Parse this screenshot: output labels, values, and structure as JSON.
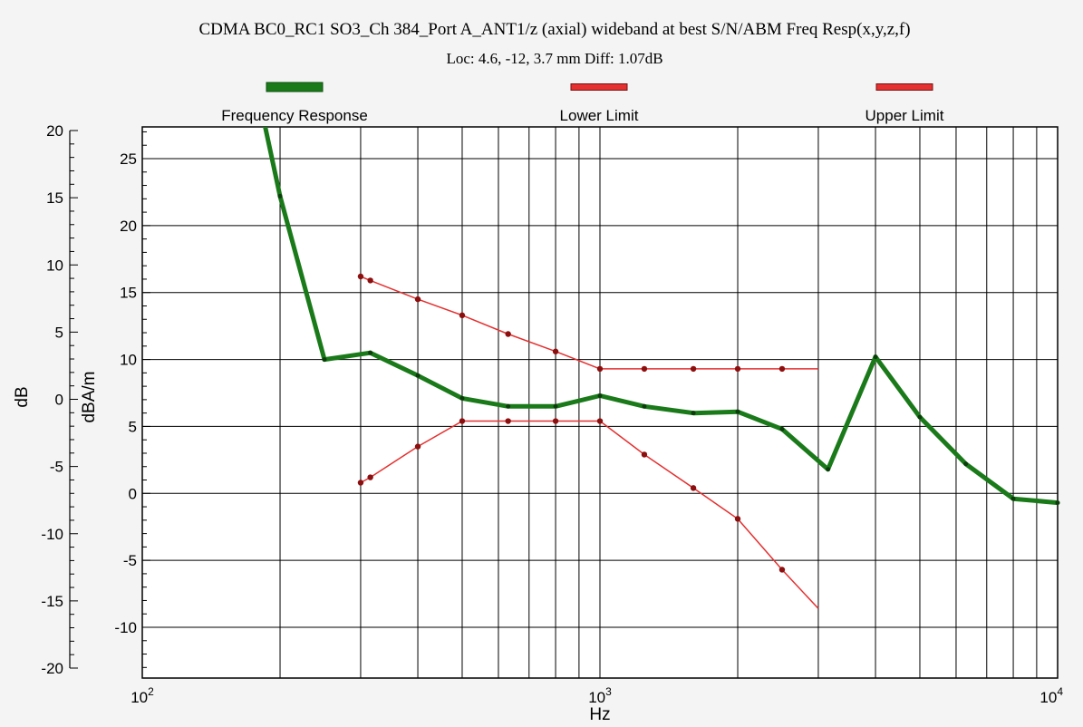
{
  "chart_data": {
    "type": "line",
    "title": "CDMA BC0_RC1 SO3_Ch 384_Port A_ANT1/z (axial) wideband at best S/N/ABM Freq Resp(x,y,z,f)",
    "subtitle": "Loc: 4.6, -12, 3.7 mm Diff: 1.07dB",
    "xlabel": "Hz",
    "ylabel_left": "dB",
    "ylabel_right": "dBA/m",
    "x_scale": "log",
    "xlim": [
      100,
      10000
    ],
    "x_ticks": [
      {
        "value": 100,
        "base": "10",
        "exp": "2"
      },
      {
        "value": 1000,
        "base": "10",
        "exp": "3"
      },
      {
        "value": 10000,
        "base": "10",
        "exp": "4"
      }
    ],
    "ylim_left": [
      -20,
      20
    ],
    "y_ticks_left": [
      "20",
      "15",
      "10",
      "5",
      "0",
      "-5",
      "-10",
      "-15",
      "-20"
    ],
    "ylim_right": [
      -13.4,
      27.6
    ],
    "y_ticks_right": [
      "25",
      "20",
      "15",
      "10",
      "5",
      "0",
      "-5",
      "-10"
    ],
    "grid": true,
    "legend_position": "top",
    "series": [
      {
        "name": "Frequency Response",
        "color": "#1a7a1a",
        "points": [
          [
            185,
            27.6
          ],
          [
            200,
            22.2
          ],
          [
            250,
            10.0
          ],
          [
            315,
            10.5
          ],
          [
            400,
            8.8
          ],
          [
            500,
            7.1
          ],
          [
            630,
            6.5
          ],
          [
            800,
            6.5
          ],
          [
            1000,
            7.3
          ],
          [
            1250,
            6.5
          ],
          [
            1600,
            6.0
          ],
          [
            2000,
            6.1
          ],
          [
            2500,
            4.8
          ],
          [
            3150,
            1.8
          ],
          [
            4000,
            10.2
          ],
          [
            5000,
            5.7
          ],
          [
            6300,
            2.2
          ],
          [
            8000,
            -0.4
          ],
          [
            10000,
            -0.7
          ]
        ]
      },
      {
        "name": "Lower Limit",
        "color": "#e53030",
        "points": [
          [
            300,
            0.8
          ],
          [
            315,
            1.2
          ],
          [
            400,
            3.5
          ],
          [
            500,
            5.4
          ],
          [
            630,
            5.4
          ],
          [
            800,
            5.4
          ],
          [
            1000,
            5.4
          ],
          [
            1250,
            2.9
          ],
          [
            1600,
            0.4
          ],
          [
            2000,
            -1.9
          ],
          [
            2500,
            -5.7
          ],
          [
            3000,
            -8.6
          ]
        ]
      },
      {
        "name": "Upper Limit",
        "color": "#e53030",
        "points": [
          [
            300,
            16.2
          ],
          [
            315,
            15.9
          ],
          [
            400,
            14.5
          ],
          [
            500,
            13.3
          ],
          [
            630,
            11.9
          ],
          [
            800,
            10.6
          ],
          [
            1000,
            9.3
          ],
          [
            1250,
            9.3
          ],
          [
            1600,
            9.3
          ],
          [
            2000,
            9.3
          ],
          [
            2500,
            9.3
          ],
          [
            3000,
            9.3
          ]
        ]
      }
    ]
  }
}
